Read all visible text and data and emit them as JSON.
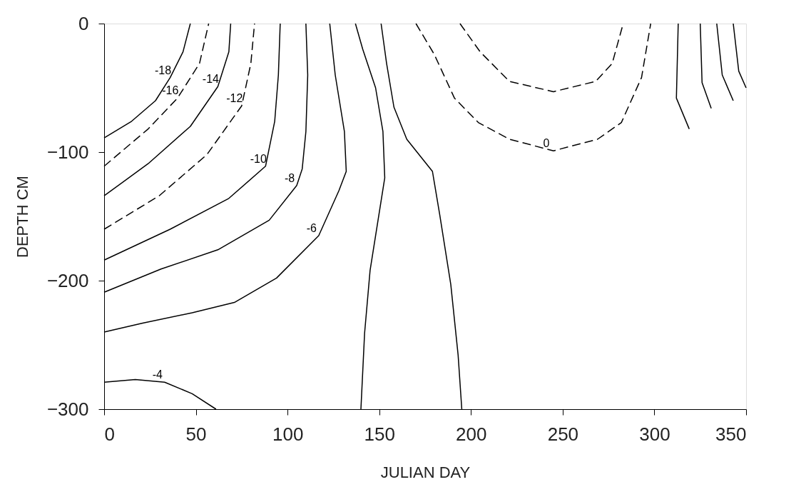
{
  "chart_data": {
    "type": "line",
    "xlabel": "JULIAN DAY",
    "ylabel": "DEPTH CM",
    "xlim": [
      0,
      350
    ],
    "ylim": [
      -300,
      0
    ],
    "xticks": [
      0,
      50,
      100,
      150,
      200,
      250,
      300,
      350
    ],
    "yticks": [
      0,
      -100,
      -200,
      -300
    ],
    "grid": false,
    "legend": false,
    "marker": "none",
    "series": [
      {
        "name": "-18",
        "color": "#000000",
        "line_style": "solid",
        "x": [
          0,
          15,
          28,
          36,
          43,
          47
        ],
        "values": [
          -89,
          -76,
          -60,
          -42,
          -22,
          0
        ]
      },
      {
        "name": "-16",
        "color": "#000000",
        "line_style": "dashed",
        "x": [
          0,
          24,
          40,
          52,
          57
        ],
        "values": [
          -111,
          -82,
          -58,
          -31,
          0
        ]
      },
      {
        "name": "-14",
        "color": "#000000",
        "line_style": "solid",
        "x": [
          0,
          24,
          47,
          62,
          68,
          69
        ],
        "values": [
          -134,
          -109,
          -80,
          -49,
          -22,
          0
        ]
      },
      {
        "name": "-12",
        "color": "#000000",
        "line_style": "dashed",
        "x": [
          0,
          30,
          56,
          75,
          80,
          82
        ],
        "values": [
          -160,
          -134,
          -102,
          -64,
          -31,
          0
        ]
      },
      {
        "name": "-10",
        "color": "#000000",
        "line_style": "solid",
        "x": [
          0,
          36,
          68,
          88,
          93,
          95,
          96
        ],
        "values": [
          -184,
          -160,
          -136,
          -111,
          -76,
          -40,
          0
        ]
      },
      {
        "name": "-8",
        "color": "#000000",
        "line_style": "solid",
        "x": [
          0,
          31,
          62,
          90,
          105,
          108,
          110,
          111,
          110
        ],
        "values": [
          -209,
          -191,
          -176,
          -153,
          -126,
          -113,
          -84,
          -40,
          0
        ]
      },
      {
        "name": "-6",
        "color": "#000000",
        "line_style": "solid",
        "x": [
          0,
          21,
          48,
          71,
          94,
          117,
          128,
          132,
          131,
          126,
          123
        ],
        "values": [
          -240,
          -233,
          -225,
          -217,
          -198,
          -165,
          -130,
          -115,
          -84,
          -40,
          0
        ]
      },
      {
        "name": "-4",
        "color": "#000000",
        "line_style": "solid",
        "x": [
          0,
          17,
          33,
          48,
          61
        ],
        "values": [
          -279,
          -277,
          -279,
          -288,
          -300
        ]
      },
      {
        "color": "#000000",
        "line_style": "solid",
        "x": [
          137,
          141,
          148,
          152,
          153,
          145,
          142,
          140
        ],
        "values": [
          0,
          -20,
          -50,
          -84,
          -120,
          -192,
          -241,
          -300
        ]
      },
      {
        "color": "#000000",
        "line_style": "solid",
        "x": [
          151,
          154,
          158,
          165,
          179,
          183,
          189,
          193,
          195
        ],
        "values": [
          0,
          -31,
          -65,
          -90,
          -115,
          -149,
          -203,
          -258,
          -300
        ]
      },
      {
        "name": "0",
        "color": "#000000",
        "line_style": "dashed",
        "x": [
          170,
          180,
          191,
          204,
          221,
          245,
          269,
          282,
          293,
          298
        ],
        "values": [
          0,
          -24,
          -58,
          -77,
          -90,
          -99,
          -90,
          -77,
          -42,
          0
        ]
      },
      {
        "color": "#000000",
        "line_style": "dashed",
        "x": [
          194,
          205,
          221,
          245,
          268,
          277,
          283
        ],
        "values": [
          0,
          -22,
          -45,
          -53,
          -45,
          -31,
          0
        ]
      },
      {
        "color": "#000000",
        "line_style": "solid",
        "x": [
          313,
          312,
          319
        ],
        "values": [
          0,
          -58,
          -82
        ]
      },
      {
        "color": "#000000",
        "line_style": "solid",
        "x": [
          325,
          326,
          331
        ],
        "values": [
          0,
          -46,
          -66
        ]
      },
      {
        "color": "#000000",
        "line_style": "solid",
        "x": [
          334,
          337,
          343
        ],
        "values": [
          0,
          -40,
          -60
        ]
      },
      {
        "color": "#000000",
        "line_style": "solid",
        "x": [
          343,
          346,
          350
        ],
        "values": [
          0,
          -37,
          -50
        ]
      }
    ]
  }
}
